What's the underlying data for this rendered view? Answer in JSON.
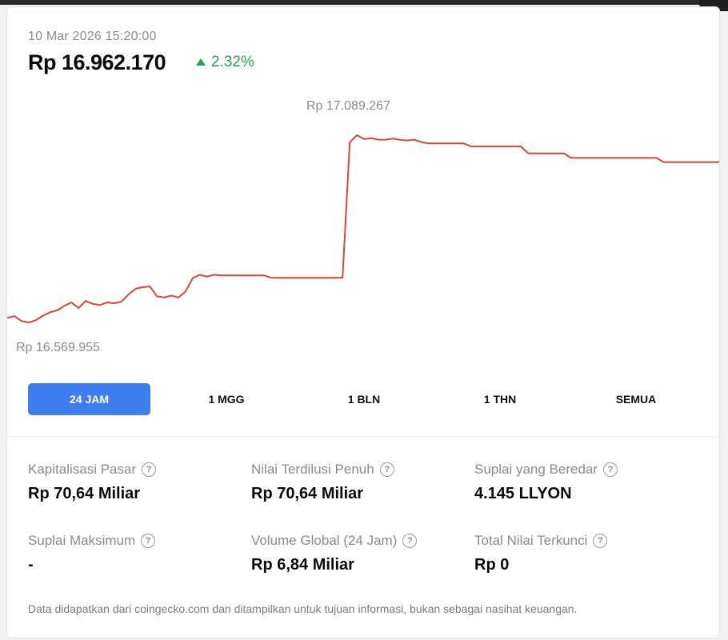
{
  "header": {
    "timestamp": "10 Mar 2026 15:20:00",
    "price": "Rp 16.962.170",
    "change": "2.32%",
    "change_direction": "up-triangle-icon"
  },
  "colors": {
    "line": "#d9453a",
    "positive": "#2e9e56",
    "tab_active": "#3d7ff0"
  },
  "chart_data": {
    "type": "line",
    "high_label": "Rp 17.089.267",
    "low_label": "Rp 16.569.955",
    "ylim": [
      16540000,
      17120000
    ],
    "x": [
      0,
      1,
      2,
      3,
      4,
      5,
      6,
      7,
      8,
      9,
      10,
      11,
      12,
      13,
      14,
      15,
      16,
      17,
      18,
      19,
      20,
      21,
      22,
      23,
      24,
      25,
      26,
      27,
      28,
      29,
      30,
      31,
      32,
      33,
      34,
      35,
      36,
      37,
      38,
      39,
      40,
      41,
      42,
      43,
      44,
      45,
      46,
      47,
      48,
      49,
      50,
      51,
      52,
      53,
      54,
      55,
      56,
      57,
      58,
      59,
      60,
      61,
      62,
      63,
      64,
      65,
      66,
      67,
      68,
      69,
      70,
      71,
      72,
      73,
      74,
      75,
      76,
      77,
      78,
      79,
      80,
      81,
      82,
      83,
      84,
      85,
      86,
      87,
      88,
      89,
      90,
      91,
      92,
      93,
      94,
      95,
      96,
      97,
      98,
      99,
      100
    ],
    "values": [
      16596000,
      16601000,
      16588000,
      16584000,
      16590000,
      16602000,
      16611000,
      16616000,
      16628000,
      16637000,
      16622000,
      16641000,
      16633000,
      16630000,
      16637000,
      16635000,
      16639000,
      16658000,
      16673000,
      16677000,
      16679000,
      16653000,
      16650000,
      16655000,
      16650000,
      16666000,
      16701000,
      16710000,
      16705000,
      16710000,
      16708000,
      16708000,
      16708000,
      16708000,
      16708000,
      16708000,
      16708000,
      16702000,
      16702000,
      16702000,
      16702000,
      16702000,
      16702000,
      16702000,
      16702000,
      16702000,
      16702000,
      16702000,
      17059000,
      17078000,
      17068000,
      17070000,
      17066000,
      17066000,
      17069000,
      17066000,
      17064000,
      17066000,
      17060000,
      17056000,
      17056000,
      17056000,
      17056000,
      17056000,
      17056000,
      17048000,
      17048000,
      17048000,
      17048000,
      17048000,
      17048000,
      17048000,
      17048000,
      17030000,
      17030000,
      17030000,
      17030000,
      17030000,
      17030000,
      17018000,
      17018000,
      17018000,
      17018000,
      17018000,
      17018000,
      17018000,
      17018000,
      17018000,
      17018000,
      17018000,
      17018000,
      17018000,
      17007000,
      17007000,
      17007000,
      17007000,
      17007000,
      17007000,
      17007000,
      17007000,
      17007000
    ]
  },
  "tabs": [
    {
      "label": "24 JAM",
      "active": true
    },
    {
      "label": "1 MGG",
      "active": false
    },
    {
      "label": "1 BLN",
      "active": false
    },
    {
      "label": "1 THN",
      "active": false
    },
    {
      "label": "SEMUA",
      "active": false
    }
  ],
  "stats": [
    {
      "label": "Kapitalisasi Pasar",
      "value": "Rp 70,64 Miliar",
      "icon": "help-icon"
    },
    {
      "label": "Nilai Terdilusi Penuh",
      "value": "Rp 70,64 Miliar",
      "icon": "help-icon"
    },
    {
      "label": "Suplai yang Beredar",
      "value": "4.145 LLYON",
      "icon": "help-icon"
    },
    {
      "label": "Suplai Maksimum",
      "value": "-",
      "icon": "help-icon"
    },
    {
      "label": "Volume Global (24 Jam)",
      "value": "Rp 6,84 Miliar",
      "icon": "help-icon"
    },
    {
      "label": "Total Nilai Terkunci",
      "value": "Rp 0",
      "icon": "help-icon"
    }
  ],
  "help_glyph": "?",
  "disclaimer": "Data didapatkan dari coingecko.com dan ditampilkan untuk tujuan informasi, bukan sebagai nasihat keuangan."
}
